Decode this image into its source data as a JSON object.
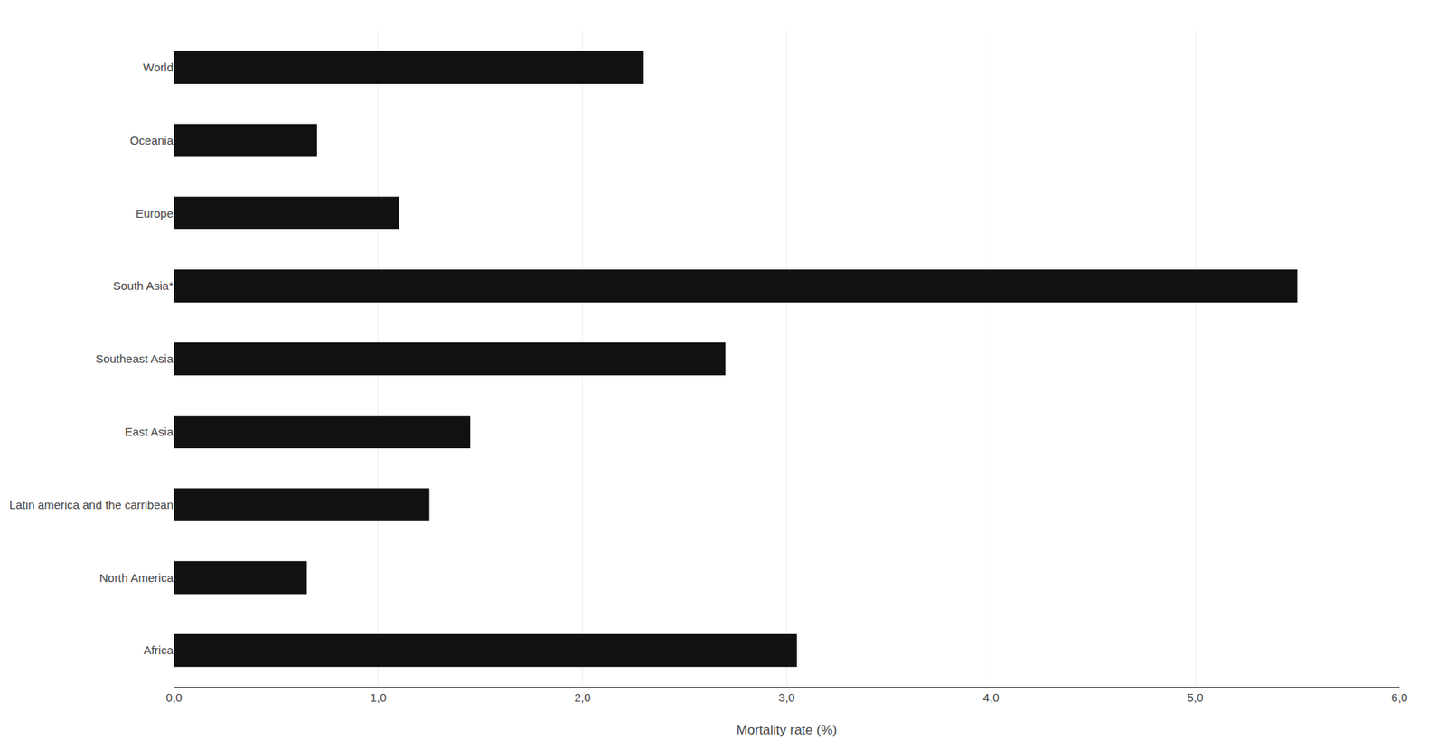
{
  "chart_data": {
    "type": "bar",
    "orientation": "horizontal",
    "categories": [
      "Africa",
      "North America",
      "Latin america and the carribean",
      "East Asia",
      "Southeast Asia",
      "South Asia*",
      "Europe",
      "Oceania",
      "World"
    ],
    "values": [
      3.05,
      0.65,
      1.25,
      1.45,
      2.7,
      5.5,
      1.1,
      0.7,
      2.3
    ],
    "color": "#111111",
    "xlabel": "Mortality rate (%)",
    "xlim": [
      0,
      6.0
    ],
    "xticks": [
      {
        "value": 0.0,
        "label": "0,0"
      },
      {
        "value": 1.0,
        "label": "1,0"
      },
      {
        "value": 2.0,
        "label": "2,0"
      },
      {
        "value": 3.0,
        "label": "3,0"
      },
      {
        "value": 4.0,
        "label": "4,0"
      },
      {
        "value": 5.0,
        "label": "5,0"
      },
      {
        "value": 6.0,
        "label": "6,0"
      }
    ],
    "grid": true
  }
}
